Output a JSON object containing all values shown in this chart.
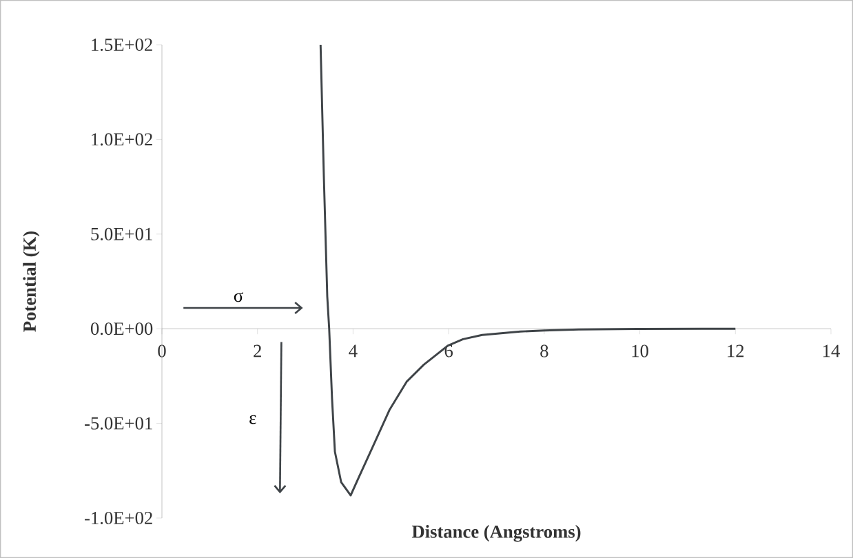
{
  "chart_data": {
    "type": "line",
    "xlabel": "Distance (Angstroms)",
    "ylabel": "Potential (K)",
    "xlim": [
      0,
      14
    ],
    "xticks": [
      0,
      2,
      4,
      6,
      8,
      10,
      12,
      14
    ],
    "ylim": [
      -100,
      150
    ],
    "yticks": [
      {
        "value": -100,
        "label": "-1.0E+02"
      },
      {
        "value": -50,
        "label": "-5.0E+01"
      },
      {
        "value": 0,
        "label": "0.0E+00"
      },
      {
        "value": 50,
        "label": "5.0E+01"
      },
      {
        "value": 100,
        "label": "1.0E+02"
      },
      {
        "value": 150,
        "label": "1.5E+02"
      }
    ],
    "annotations": [
      "σ",
      "ε"
    ],
    "series": [
      {
        "color": "#3f4448",
        "x": [
          3.32,
          3.39,
          3.46,
          3.5,
          3.56,
          3.62,
          3.75,
          3.95,
          4.11,
          4.4,
          4.76,
          5.12,
          5.48,
          5.98,
          6.3,
          6.7,
          7.5,
          8.0,
          8.72,
          9.95,
          12.0
        ],
        "values": [
          150,
          79,
          17,
          0,
          -37,
          -65,
          -81,
          -88,
          -79,
          -63,
          -43,
          -28,
          -19,
          -9,
          -5.5,
          -3.3,
          -1.5,
          -0.9,
          -0.4,
          -0.1,
          0
        ]
      }
    ]
  }
}
